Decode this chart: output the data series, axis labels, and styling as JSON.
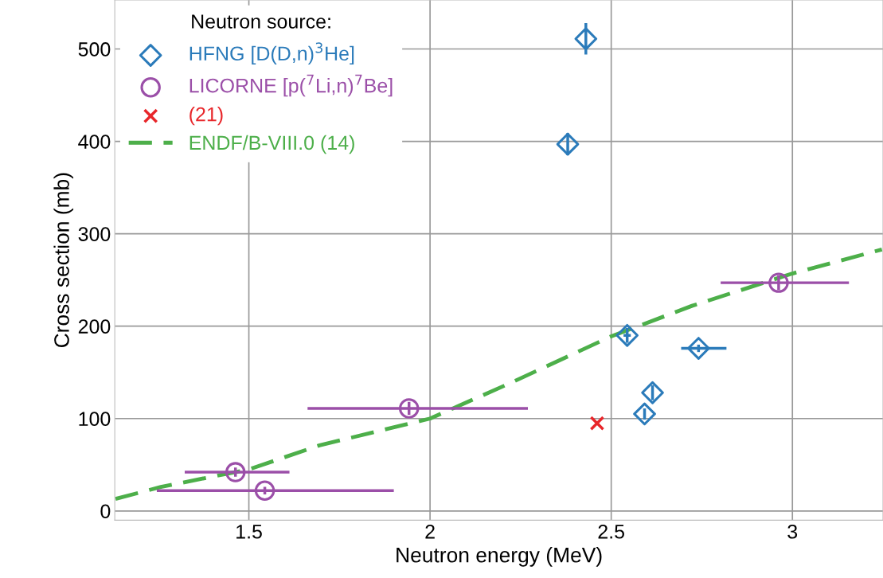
{
  "chart_data": {
    "type": "scatter",
    "xlabel": "Neutron energy (MeV)",
    "ylabel": "Cross section (mb)",
    "legend_title": "Neutron source:",
    "xlim": [
      1.13,
      3.25
    ],
    "ylim": [
      -10,
      553
    ],
    "xticks": [
      1.5,
      2,
      2.5,
      3
    ],
    "yticks": [
      0,
      100,
      200,
      300,
      400,
      500
    ],
    "grid": true,
    "legend": "top left",
    "series": [
      {
        "name": "HFNG [D(D,n)$^{3}$He]",
        "color": "#2b7bba",
        "marker": "diamond",
        "x": [
          2.43,
          2.38,
          2.544,
          2.614,
          2.592,
          2.741
        ],
        "values": [
          511,
          397,
          190,
          128,
          105,
          176
        ],
        "errors": [
          17,
          12,
          8,
          8,
          6,
          4
        ],
        "xerrors": [
          null,
          null,
          0.01,
          null,
          null,
          [
            2.693,
            2.818
          ]
        ]
      },
      {
        "name": "LICORNE [p($^{7}$Li,n)$^{7}$Be]",
        "color": "#9b4fa8",
        "marker": "circle",
        "x": [
          1.463,
          1.544,
          1.942,
          2.962
        ],
        "values": [
          42,
          22,
          111,
          247
        ],
        "errors": [
          5,
          4,
          7,
          8
        ],
        "xerrors": [
          [
            1.323,
            1.612
          ],
          [
            1.246,
            1.9
          ],
          [
            1.662,
            2.27
          ],
          [
            2.802,
            3.156
          ]
        ]
      },
      {
        "name": "(21)",
        "color": "#e8262a",
        "marker": "cross",
        "x": [
          2.461
        ],
        "values": [
          95
        ]
      },
      {
        "name": "ENDF/B-VIII.0 (14)",
        "type": "line",
        "line_style": "dashed",
        "marker": "none",
        "color": "#4daf4a",
        "x": [
          1.132,
          1.257,
          1.5,
          1.695,
          2.0,
          2.219,
          2.5,
          2.723,
          3.0,
          3.247
        ],
        "values": [
          13,
          26,
          45,
          71,
          100,
          138,
          189,
          222,
          257,
          283
        ]
      }
    ]
  }
}
